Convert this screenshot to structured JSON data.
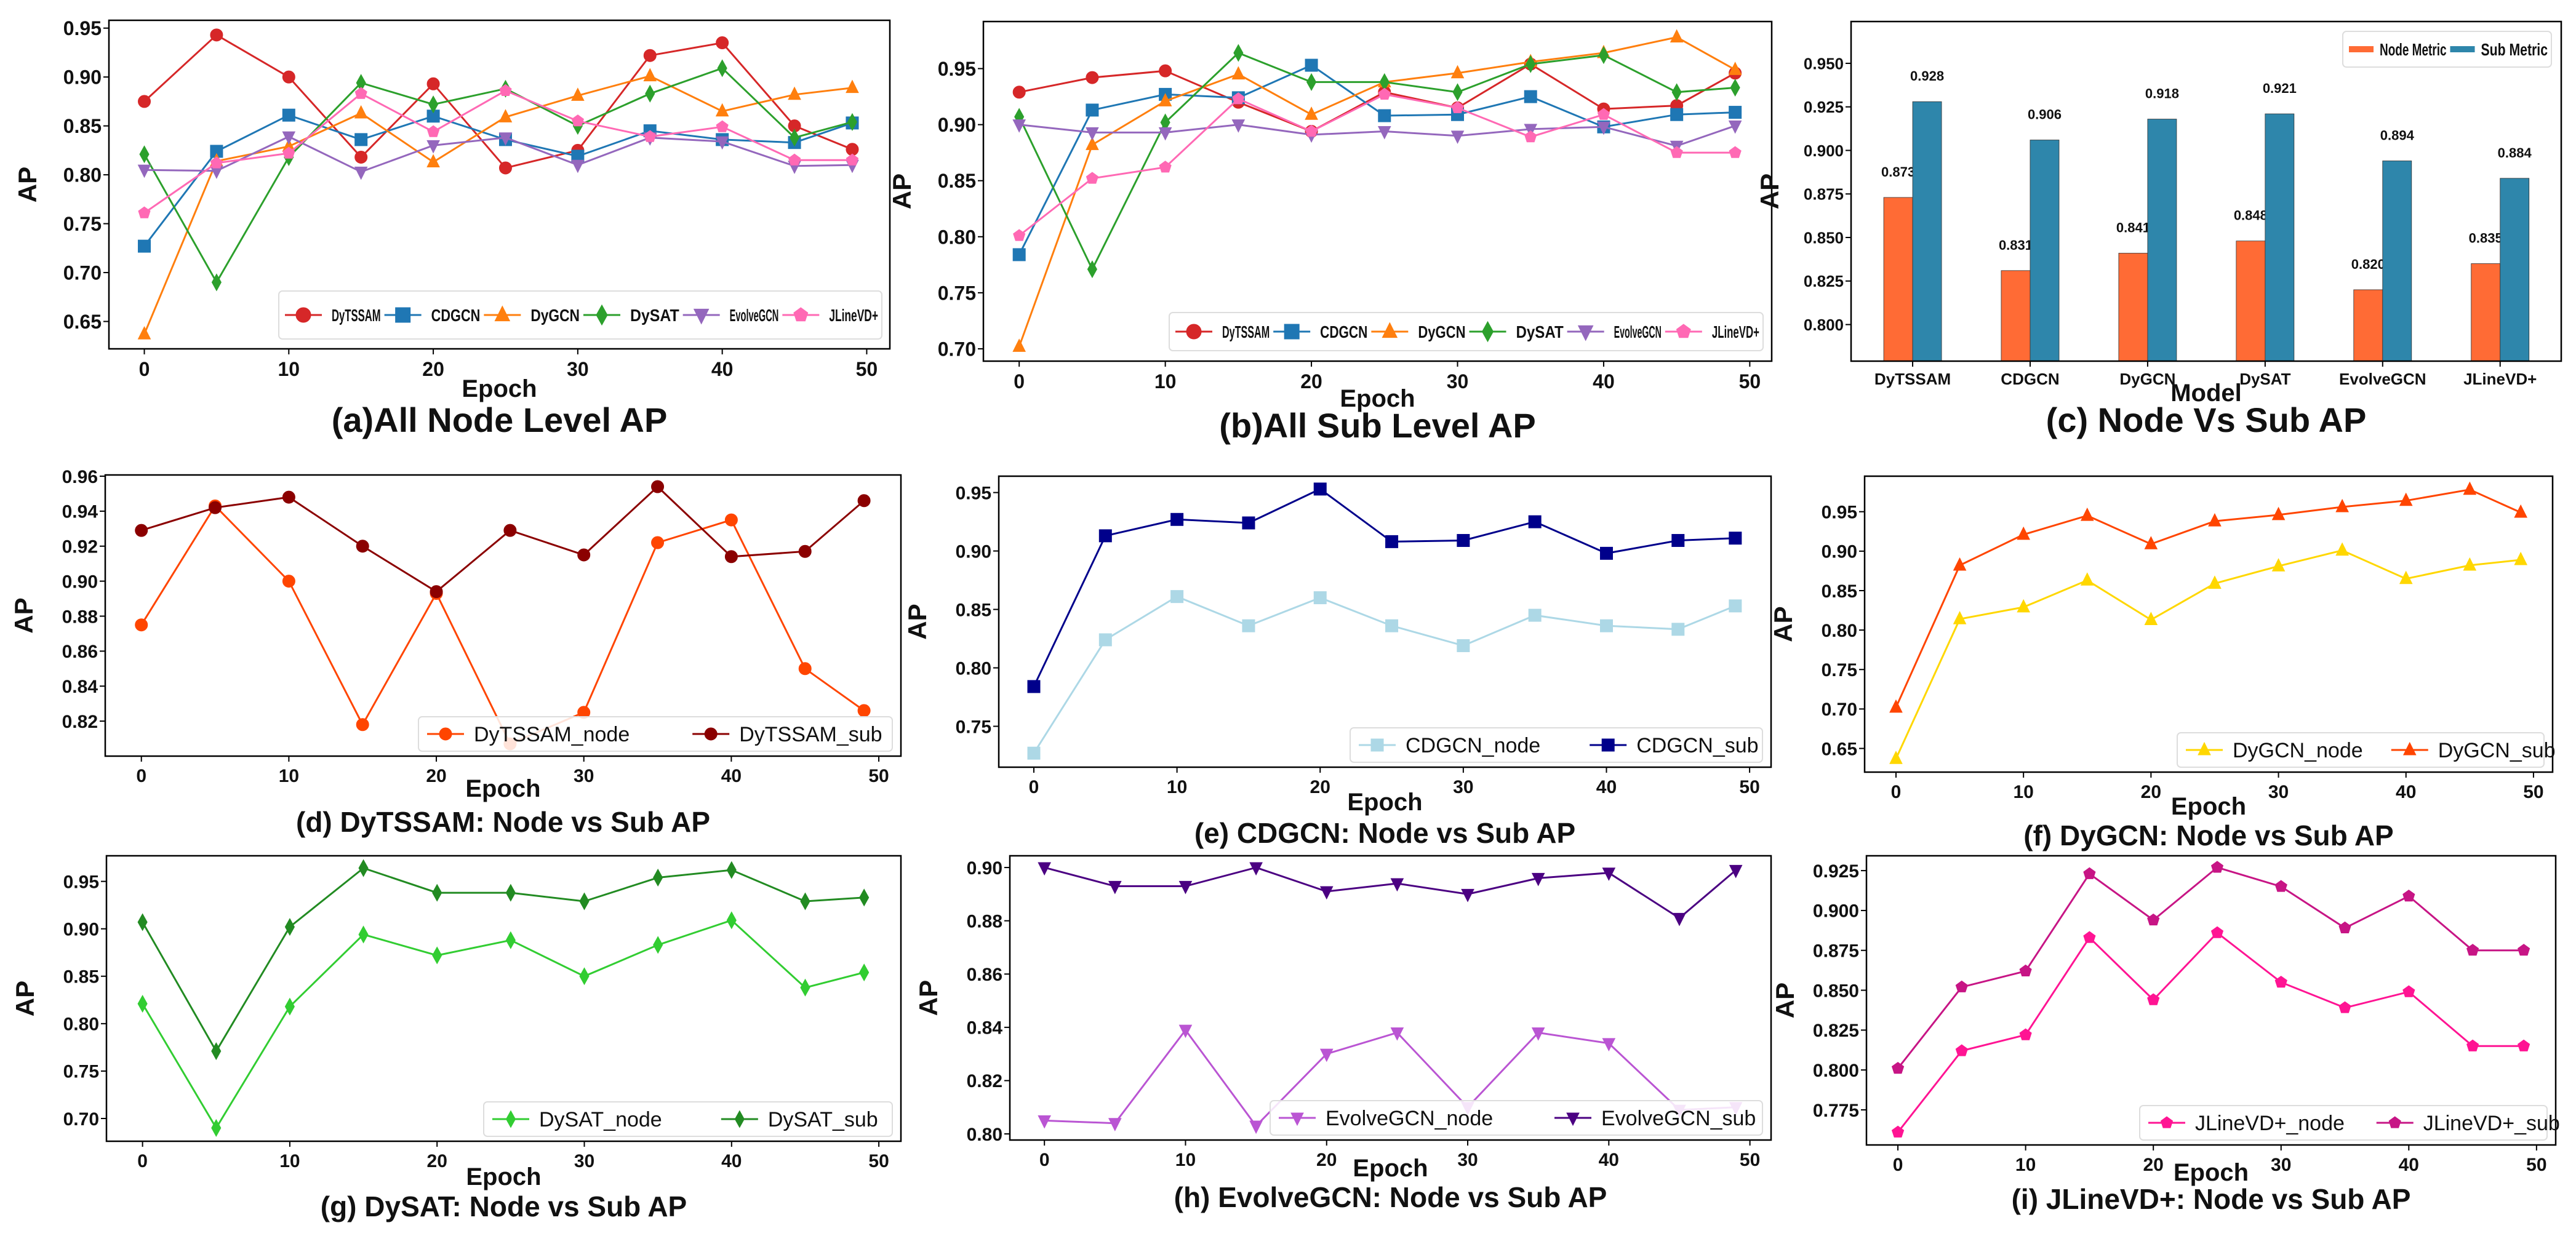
{
  "chart_data": [
    {
      "type": "line",
      "title": "(a)All Node Level AP",
      "xlabel": "Epoch",
      "ylabel": "AP",
      "xlim": [
        -2.45,
        51.6
      ],
      "ylim": [
        0.622,
        0.958
      ],
      "xticks": [
        "0",
        "10",
        "20",
        "30",
        "40",
        "50"
      ],
      "yticks": [
        "0.65",
        "0.70",
        "0.75",
        "0.80",
        "0.85",
        "0.90",
        "0.95"
      ],
      "grid": false,
      "legend_position": "lower-right",
      "x": [
        0,
        5,
        10,
        15,
        20,
        25,
        30,
        35,
        40,
        45,
        49
      ],
      "series": [
        {
          "name": "DyTSSAM",
          "color": "#d62728",
          "marker": "circle",
          "values": [
            0.875,
            0.943,
            0.9,
            0.818,
            0.893,
            0.807,
            0.825,
            0.922,
            0.935,
            0.85,
            0.826
          ]
        },
        {
          "name": "CDGCN",
          "color": "#1f77b4",
          "marker": "square",
          "values": [
            0.727,
            0.824,
            0.861,
            0.836,
            0.86,
            0.836,
            0.819,
            0.845,
            0.836,
            0.833,
            0.853
          ]
        },
        {
          "name": "DyGCN",
          "color": "#ff7f0e",
          "marker": "triangle-up",
          "values": [
            0.637,
            0.814,
            0.829,
            0.863,
            0.813,
            0.859,
            0.881,
            0.901,
            0.865,
            0.882,
            0.889
          ]
        },
        {
          "name": "DySAT",
          "color": "#2ca02c",
          "marker": "diamond",
          "values": [
            0.821,
            0.69,
            0.818,
            0.894,
            0.872,
            0.888,
            0.85,
            0.883,
            0.909,
            0.838,
            0.854
          ]
        },
        {
          "name": "EvolveGCN",
          "color": "#9467bd",
          "marker": "triangle-down",
          "values": [
            0.805,
            0.804,
            0.839,
            0.803,
            0.83,
            0.838,
            0.81,
            0.838,
            0.834,
            0.809,
            0.81
          ]
        },
        {
          "name": "JLineVD+",
          "color": "#ff69b4",
          "marker": "pentagon",
          "values": [
            0.761,
            0.812,
            0.822,
            0.883,
            0.844,
            0.886,
            0.855,
            0.839,
            0.849,
            0.815,
            0.815
          ]
        }
      ]
    },
    {
      "type": "line",
      "title": "(b)All Sub Level AP",
      "xlabel": "Epoch",
      "ylabel": "AP",
      "xlim": [
        -2.45,
        51.5
      ],
      "ylim": [
        0.689,
        0.992
      ],
      "xticks": [
        "0",
        "10",
        "20",
        "30",
        "40",
        "50"
      ],
      "yticks": [
        "0.70",
        "0.75",
        "0.80",
        "0.85",
        "0.90",
        "0.95"
      ],
      "grid": false,
      "legend_position": "lower-right",
      "x": [
        0,
        5,
        10,
        15,
        20,
        25,
        30,
        35,
        40,
        45,
        49
      ],
      "series": [
        {
          "name": "DyTSSAM",
          "color": "#d62728",
          "marker": "circle",
          "values": [
            0.929,
            0.942,
            0.948,
            0.92,
            0.894,
            0.929,
            0.915,
            0.954,
            0.914,
            0.917,
            0.946
          ]
        },
        {
          "name": "CDGCN",
          "color": "#1f77b4",
          "marker": "square",
          "values": [
            0.784,
            0.913,
            0.927,
            0.924,
            0.953,
            0.908,
            0.909,
            0.925,
            0.898,
            0.909,
            0.911
          ]
        },
        {
          "name": "DyGCN",
          "color": "#ff7f0e",
          "marker": "triangle-up",
          "values": [
            0.702,
            0.882,
            0.921,
            0.945,
            0.909,
            0.938,
            0.946,
            0.956,
            0.964,
            0.978,
            0.949
          ]
        },
        {
          "name": "DySAT",
          "color": "#2ca02c",
          "marker": "diamond",
          "values": [
            0.907,
            0.771,
            0.902,
            0.964,
            0.938,
            0.938,
            0.929,
            0.954,
            0.962,
            0.929,
            0.933
          ]
        },
        {
          "name": "EvolveGCN",
          "color": "#9467bd",
          "marker": "triangle-down",
          "values": [
            0.9,
            0.893,
            0.893,
            0.9,
            0.891,
            0.894,
            0.89,
            0.896,
            0.898,
            0.881,
            0.899
          ]
        },
        {
          "name": "JLineVD+",
          "color": "#ff69b4",
          "marker": "pentagon",
          "values": [
            0.801,
            0.852,
            0.862,
            0.923,
            0.894,
            0.927,
            0.915,
            0.889,
            0.909,
            0.875,
            0.875
          ]
        }
      ]
    },
    {
      "type": "bar",
      "title": "(c) Node Vs Sub AP",
      "xlabel": "Model",
      "ylabel": "AP",
      "ylim": [
        0.779,
        0.974
      ],
      "yticks": [
        "0.800",
        "0.825",
        "0.850",
        "0.875",
        "0.900",
        "0.925",
        "0.950"
      ],
      "grid": false,
      "legend_position": "top-right",
      "categories": [
        "DyTSSAM",
        "CDGCN",
        "DyGCN",
        "DySAT",
        "EvolveGCN",
        "JLineVD+"
      ],
      "series": [
        {
          "name": "Node Metric",
          "color": "#ff6b35",
          "values": [
            0.873,
            0.831,
            0.841,
            0.848,
            0.82,
            0.835
          ]
        },
        {
          "name": "Sub Metric",
          "color": "#2e86ab",
          "values": [
            0.928,
            0.906,
            0.918,
            0.921,
            0.894,
            0.884
          ]
        }
      ]
    },
    {
      "type": "line",
      "title": "(d) DyTSSAM: Node vs Sub AP",
      "xlabel": "Epoch",
      "ylabel": "AP",
      "xlim": [
        -2.45,
        51.5
      ],
      "ylim": [
        0.8,
        0.9607
      ],
      "xticks": [
        "0",
        "10",
        "20",
        "30",
        "40",
        "50"
      ],
      "yticks": [
        "0.82",
        "0.84",
        "0.86",
        "0.88",
        "0.90",
        "0.92",
        "0.94",
        "0.96"
      ],
      "grid": false,
      "legend_position": "lower-right",
      "x": [
        0,
        5,
        10,
        15,
        20,
        25,
        30,
        35,
        40,
        45,
        49
      ],
      "series": [
        {
          "name": "DyTSSAM_node",
          "color": "#ff4500",
          "marker": "circle",
          "values": [
            0.875,
            0.943,
            0.9,
            0.818,
            0.893,
            0.807,
            0.825,
            0.922,
            0.935,
            0.85,
            0.826
          ]
        },
        {
          "name": "DyTSSAM_sub",
          "color": "#8b0000",
          "marker": "circle",
          "values": [
            0.929,
            0.942,
            0.948,
            0.92,
            0.894,
            0.929,
            0.915,
            0.954,
            0.914,
            0.917,
            0.946
          ]
        }
      ]
    },
    {
      "type": "line",
      "title": "(e) CDGCN: Node vs Sub AP",
      "xlabel": "Epoch",
      "ylabel": "AP",
      "xlim": [
        -2.45,
        51.5
      ],
      "ylim": [
        0.715,
        0.964
      ],
      "xticks": [
        "0",
        "10",
        "20",
        "30",
        "40",
        "50"
      ],
      "yticks": [
        "0.75",
        "0.80",
        "0.85",
        "0.90",
        "0.95"
      ],
      "grid": false,
      "legend_position": "lower-right",
      "x": [
        0,
        5,
        10,
        15,
        20,
        25,
        30,
        35,
        40,
        45,
        49
      ],
      "series": [
        {
          "name": "CDGCN_node",
          "color": "#add8e6",
          "marker": "square",
          "values": [
            0.727,
            0.824,
            0.861,
            0.836,
            0.86,
            0.836,
            0.819,
            0.845,
            0.836,
            0.833,
            0.853
          ]
        },
        {
          "name": "CDGCN_sub",
          "color": "#00008b",
          "marker": "square",
          "values": [
            0.784,
            0.913,
            0.927,
            0.924,
            0.953,
            0.908,
            0.909,
            0.925,
            0.898,
            0.909,
            0.911
          ]
        }
      ]
    },
    {
      "type": "line",
      "title": "(f) DyGCN: Node vs Sub AP",
      "xlabel": "Epoch",
      "ylabel": "AP",
      "xlim": [
        -2.46,
        51.5
      ],
      "ylim": [
        0.62,
        0.995
      ],
      "xticks": [
        "0",
        "10",
        "20",
        "30",
        "40",
        "50"
      ],
      "yticks": [
        "0.65",
        "0.70",
        "0.75",
        "0.80",
        "0.85",
        "0.90",
        "0.95"
      ],
      "grid": false,
      "legend_position": "lower-right",
      "x": [
        0,
        5,
        10,
        15,
        20,
        25,
        30,
        35,
        40,
        45,
        49
      ],
      "series": [
        {
          "name": "DyGCN_node",
          "color": "#ffd700",
          "marker": "triangle-up",
          "values": [
            0.637,
            0.814,
            0.829,
            0.863,
            0.813,
            0.859,
            0.881,
            0.901,
            0.865,
            0.882,
            0.889
          ]
        },
        {
          "name": "DyGCN_sub",
          "color": "#ff4500",
          "marker": "triangle-up",
          "values": [
            0.702,
            0.882,
            0.921,
            0.945,
            0.909,
            0.938,
            0.946,
            0.956,
            0.964,
            0.978,
            0.949
          ]
        }
      ]
    },
    {
      "type": "line",
      "title": "(g) DySAT: Node vs Sub AP",
      "xlabel": "Epoch",
      "ylabel": "AP",
      "xlim": [
        -2.45,
        51.5
      ],
      "ylim": [
        0.676,
        0.977
      ],
      "xticks": [
        "0",
        "10",
        "20",
        "30",
        "40",
        "50"
      ],
      "yticks": [
        "0.70",
        "0.75",
        "0.80",
        "0.85",
        "0.90",
        "0.95"
      ],
      "grid": false,
      "legend_position": "lower-right",
      "x": [
        0,
        5,
        10,
        15,
        20,
        25,
        30,
        35,
        40,
        45,
        49
      ],
      "series": [
        {
          "name": "DySAT_node",
          "color": "#32cd32",
          "marker": "diamond",
          "values": [
            0.821,
            0.69,
            0.818,
            0.894,
            0.872,
            0.888,
            0.85,
            0.883,
            0.909,
            0.838,
            0.854
          ]
        },
        {
          "name": "DySAT_sub",
          "color": "#228b22",
          "marker": "diamond",
          "values": [
            0.907,
            0.771,
            0.902,
            0.964,
            0.938,
            0.938,
            0.929,
            0.954,
            0.962,
            0.929,
            0.933
          ]
        }
      ]
    },
    {
      "type": "line",
      "title": "(h) EvolveGCN: Node vs Sub AP",
      "xlabel": "Epoch",
      "ylabel": "AP",
      "xlim": [
        -2.45,
        51.5
      ],
      "ylim": [
        0.7977,
        0.9044
      ],
      "xticks": [
        "0",
        "10",
        "20",
        "30",
        "40",
        "50"
      ],
      "yticks": [
        "0.80",
        "0.82",
        "0.84",
        "0.86",
        "0.88",
        "0.90"
      ],
      "grid": false,
      "legend_position": "lower-right",
      "x": [
        0,
        5,
        10,
        15,
        20,
        25,
        30,
        35,
        40,
        45,
        49
      ],
      "series": [
        {
          "name": "EvolveGCN_node",
          "color": "#ba55d3",
          "marker": "triangle-down",
          "values": [
            0.805,
            0.804,
            0.839,
            0.803,
            0.83,
            0.838,
            0.81,
            0.838,
            0.834,
            0.809,
            0.81
          ]
        },
        {
          "name": "EvolveGCN_sub",
          "color": "#4b0082",
          "marker": "triangle-down",
          "values": [
            0.9,
            0.893,
            0.893,
            0.9,
            0.891,
            0.894,
            0.89,
            0.896,
            0.898,
            0.881,
            0.899
          ]
        }
      ]
    },
    {
      "type": "line",
      "title": "(i) JLineVD+: Node vs Sub AP",
      "xlabel": "Epoch",
      "ylabel": "AP",
      "xlim": [
        -2.46,
        51.5
      ],
      "ylim": [
        0.753,
        0.9343
      ],
      "xticks": [
        "0",
        "10",
        "20",
        "30",
        "40",
        "50"
      ],
      "yticks": [
        "0.775",
        "0.800",
        "0.825",
        "0.850",
        "0.875",
        "0.900",
        "0.925"
      ],
      "grid": false,
      "legend_position": "lower-right",
      "x": [
        0,
        5,
        10,
        15,
        20,
        25,
        30,
        35,
        40,
        45,
        49
      ],
      "series": [
        {
          "name": "JLineVD+_node",
          "color": "#ff1493",
          "marker": "pentagon",
          "values": [
            0.761,
            0.812,
            0.822,
            0.883,
            0.844,
            0.886,
            0.855,
            0.839,
            0.849,
            0.815,
            0.815
          ]
        },
        {
          "name": "JLineVD+_sub",
          "color": "#c71585",
          "marker": "pentagon",
          "values": [
            0.801,
            0.852,
            0.862,
            0.923,
            0.894,
            0.927,
            0.915,
            0.889,
            0.909,
            0.875,
            0.875
          ]
        }
      ]
    }
  ]
}
